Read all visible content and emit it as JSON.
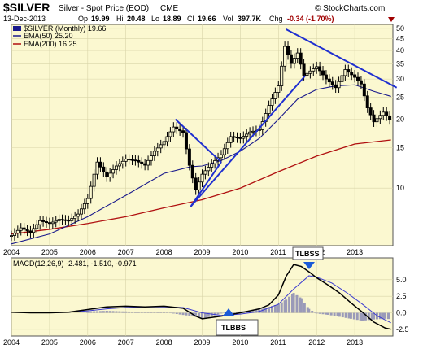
{
  "header": {
    "symbol": "$SILVER",
    "name": "Silver - Spot Price (EOD)",
    "exchange": "CME",
    "date": "13-Dec-2013",
    "op_label": "Op",
    "op": "19.99",
    "hi_label": "Hi",
    "hi": "20.48",
    "lo_label": "Lo",
    "lo": "18.89",
    "cl_label": "Cl",
    "cl": "19.66",
    "vol_label": "Vol",
    "vol": "397.7K",
    "chg_label": "Chg",
    "chg": "-0.34 (-1.70%)",
    "watermark": "© StockCharts.com"
  },
  "legend": {
    "price": "$SILVER (Monthly) 19.66",
    "ema50": "EMA(50) 25.20",
    "ema200": "EMA(200) 16.25",
    "macd": "MACD(12,26,9) -2.481, -1.510, -0.971"
  },
  "colors": {
    "panel_bg": "#fbf8d0",
    "candle": "#000000",
    "ema50": "#1a1a8c",
    "ema200": "#b01010",
    "trendline": "#1f2fd0",
    "macd": "#000000",
    "signal": "#3a3ad0",
    "histogram": "#9a9ab8",
    "callout_bg": "#ffffff",
    "marker": "#1a5ad8"
  },
  "annotations": [
    {
      "label": "TLBSS",
      "pointer": "down"
    },
    {
      "label": "TLBBS",
      "pointer": "up"
    }
  ],
  "chart_data": [
    {
      "type": "candlestick",
      "title": "$SILVER (Monthly)",
      "y_scale": "log",
      "ylim": [
        5.6,
        52
      ],
      "y_ticks": [
        10,
        15,
        20,
        25,
        30,
        35,
        40,
        45,
        50
      ],
      "x_ticks": [
        "2004",
        "2005",
        "2006",
        "2007",
        "2008",
        "2009",
        "2010",
        "2011",
        "2012",
        "2013"
      ],
      "x_range": [
        2004.0,
        2014.0
      ],
      "grid": true,
      "legend_position": "top-left",
      "series": [
        {
          "name": "$SILVER (Monthly)",
          "kind": "close",
          "x": [
            2004.0,
            2004.25,
            2004.5,
            2004.75,
            2005.0,
            2005.25,
            2005.5,
            2005.75,
            2006.0,
            2006.25,
            2006.5,
            2006.75,
            2007.0,
            2007.25,
            2007.5,
            2007.75,
            2008.0,
            2008.25,
            2008.5,
            2008.67,
            2008.83,
            2009.0,
            2009.25,
            2009.5,
            2009.75,
            2010.0,
            2010.25,
            2010.5,
            2010.75,
            2011.0,
            2011.17,
            2011.33,
            2011.5,
            2011.67,
            2011.83,
            2012.0,
            2012.25,
            2012.5,
            2012.75,
            2013.0,
            2013.17,
            2013.33,
            2013.5,
            2013.75,
            2013.95
          ],
          "values": [
            6.2,
            6.7,
            6.4,
            7.2,
            7.0,
            7.3,
            7.2,
            7.7,
            9.0,
            13.0,
            11.2,
            12.5,
            13.4,
            13.2,
            12.6,
            14.5,
            16.0,
            18.5,
            17.5,
            12.5,
            9.8,
            11.5,
            12.8,
            14.0,
            16.8,
            16.5,
            17.6,
            18.0,
            23.0,
            28.0,
            42.0,
            35.0,
            39.0,
            31.0,
            32.5,
            34.0,
            30.0,
            27.5,
            33.0,
            30.5,
            28.5,
            22.5,
            19.5,
            21.5,
            19.66
          ]
        },
        {
          "name": "EMA(50)",
          "x": [
            2004.0,
            2005.0,
            2006.0,
            2007.0,
            2008.0,
            2008.7,
            2009.0,
            2009.5,
            2010.0,
            2010.5,
            2011.0,
            2011.5,
            2012.0,
            2012.5,
            2013.0,
            2013.5,
            2013.95
          ],
          "values": [
            5.7,
            6.3,
            7.5,
            9.3,
            11.6,
            12.4,
            12.5,
            13.2,
            14.5,
            16.5,
            20.0,
            24.5,
            27.0,
            28.0,
            28.3,
            26.5,
            25.2
          ]
        },
        {
          "name": "EMA(200)",
          "x": [
            2004.0,
            2005.0,
            2006.0,
            2007.0,
            2008.0,
            2009.0,
            2010.0,
            2011.0,
            2012.0,
            2013.0,
            2013.95
          ],
          "values": [
            6.3,
            6.6,
            7.0,
            7.5,
            8.2,
            8.9,
            10.0,
            11.8,
            13.8,
            15.6,
            16.25
          ]
        }
      ],
      "trendlines": [
        {
          "x": [
            2008.7,
            2009.5
          ],
          "y": [
            8.3,
            13.0
          ]
        },
        {
          "x": [
            2008.3,
            2009.5
          ],
          "y": [
            20.0,
            13.0
          ]
        },
        {
          "x": [
            2008.7,
            2011.7
          ],
          "y": [
            8.3,
            31.0
          ]
        },
        {
          "x": [
            2011.2,
            2014.1
          ],
          "y": [
            49.5,
            27.5
          ]
        }
      ]
    },
    {
      "type": "line",
      "title": "MACD(12,26,9)",
      "ylim": [
        -3.5,
        8.3
      ],
      "y_ticks": [
        -2.5,
        0.0,
        2.5,
        5.0
      ],
      "x_ticks": [
        "2004",
        "2005",
        "2006",
        "2007",
        "2008",
        "2009",
        "2010",
        "2011",
        "2012",
        "2013"
      ],
      "x_range": [
        2004.0,
        2014.0
      ],
      "grid": true,
      "legend_position": "top-left",
      "series": [
        {
          "name": "MACD",
          "x": [
            2004.0,
            2004.5,
            2005.0,
            2005.5,
            2006.0,
            2006.5,
            2007.0,
            2007.5,
            2008.0,
            2008.5,
            2008.83,
            2009.0,
            2009.5,
            2010.0,
            2010.5,
            2010.75,
            2011.0,
            2011.2,
            2011.4,
            2011.6,
            2011.8,
            2012.0,
            2012.3,
            2012.6,
            2012.9,
            2013.2,
            2013.5,
            2013.8,
            2013.95
          ],
          "values": [
            0.1,
            0.0,
            0.0,
            0.1,
            0.5,
            0.9,
            1.0,
            0.9,
            1.0,
            0.7,
            -0.5,
            -0.9,
            -0.5,
            0.0,
            0.6,
            1.2,
            2.7,
            5.5,
            7.3,
            7.0,
            6.2,
            5.3,
            4.2,
            3.0,
            1.5,
            0.1,
            -1.4,
            -2.3,
            -2.48
          ]
        },
        {
          "name": "Signal",
          "x": [
            2004.0,
            2004.5,
            2005.0,
            2005.5,
            2006.0,
            2006.5,
            2007.0,
            2007.5,
            2008.0,
            2008.5,
            2009.0,
            2009.5,
            2010.0,
            2010.5,
            2011.0,
            2011.4,
            2011.8,
            2012.0,
            2012.4,
            2012.8,
            2013.2,
            2013.6,
            2013.95
          ],
          "values": [
            0.1,
            0.1,
            0.0,
            0.1,
            0.3,
            0.6,
            0.8,
            0.9,
            0.9,
            0.8,
            0.0,
            -0.4,
            -0.2,
            0.2,
            1.3,
            3.6,
            5.6,
            5.4,
            4.5,
            3.0,
            1.3,
            -0.5,
            -1.51
          ]
        },
        {
          "name": "Histogram",
          "kind": "bar",
          "x": [
            2006.0,
            2006.5,
            2007.0,
            2008.0,
            2008.83,
            2009.0,
            2009.5,
            2010.0,
            2010.5,
            2011.0,
            2011.2,
            2011.4,
            2011.6,
            2011.8,
            2012.0,
            2012.3,
            2012.6,
            2012.9,
            2013.2,
            2013.5,
            2013.8,
            2013.95
          ],
          "values": [
            0.2,
            0.3,
            0.2,
            0.1,
            -0.6,
            -0.9,
            -0.1,
            0.2,
            0.5,
            1.3,
            2.0,
            3.0,
            2.2,
            0.6,
            -0.1,
            -0.3,
            -0.6,
            -0.9,
            -1.2,
            -1.0,
            -0.9,
            -0.97
          ]
        }
      ]
    }
  ]
}
